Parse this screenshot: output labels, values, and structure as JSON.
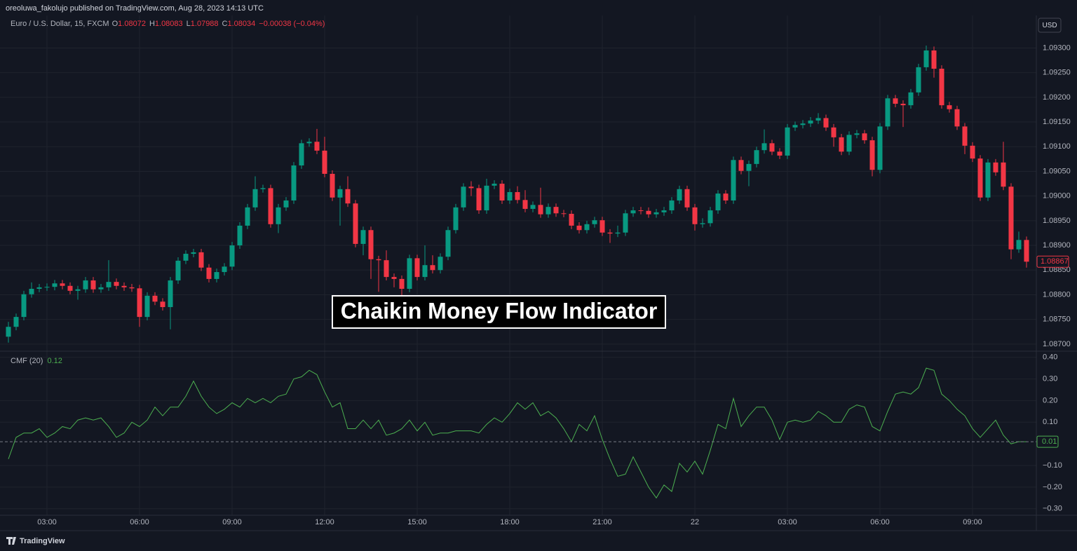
{
  "header": {
    "published": "oreoluwa_fakolujo published on TradingView.com, Aug 28, 2023 14:13 UTC",
    "currency": "USD",
    "annotation": "Chaikin Money Flow Indicator",
    "brand": "TradingView"
  },
  "chart_data": [
    {
      "type": "candlestick",
      "title": "Euro / U.S. Dollar, 15, FXCM",
      "quote": [
        [
          "O",
          "1.08072"
        ],
        [
          "H",
          "1.08083"
        ],
        [
          "L",
          "1.07988"
        ],
        [
          "C",
          "1.08034"
        ]
      ],
      "change": "−0.00038 (−0.04%)",
      "last_price_label": "1.08867",
      "up_color": "#089981",
      "down_color": "#f23645",
      "grid": true,
      "ylim": [
        1.08687,
        1.09366
      ],
      "yticks": [
        {
          "value": 1.093,
          "label": "1.09300"
        },
        {
          "value": 1.0925,
          "label": "1.09250"
        },
        {
          "value": 1.092,
          "label": "1.09200"
        },
        {
          "value": 1.0915,
          "label": "1.09150"
        },
        {
          "value": 1.091,
          "label": "1.09100"
        },
        {
          "value": 1.0905,
          "label": "1.09050"
        },
        {
          "value": 1.09,
          "label": "1.09000"
        },
        {
          "value": 1.0895,
          "label": "1.08950"
        },
        {
          "value": 1.089,
          "label": "1.08900"
        },
        {
          "value": 1.0885,
          "label": "1.08850"
        },
        {
          "value": 1.088,
          "label": "1.08800"
        },
        {
          "value": 1.0875,
          "label": "1.08750"
        },
        {
          "value": 1.087,
          "label": "1.08700"
        }
      ],
      "categories": [
        null,
        null,
        null,
        null,
        null,
        "03:00",
        null,
        null,
        null,
        null,
        null,
        null,
        null,
        null,
        null,
        null,
        null,
        "06:00",
        null,
        null,
        null,
        null,
        null,
        null,
        null,
        null,
        null,
        null,
        null,
        "09:00",
        null,
        null,
        null,
        null,
        null,
        null,
        null,
        null,
        null,
        null,
        null,
        "12:00",
        null,
        null,
        null,
        null,
        null,
        null,
        null,
        null,
        null,
        null,
        null,
        "15:00",
        null,
        null,
        null,
        null,
        null,
        null,
        null,
        null,
        null,
        null,
        null,
        "18:00",
        null,
        null,
        null,
        null,
        null,
        null,
        null,
        null,
        null,
        null,
        null,
        "21:00",
        null,
        null,
        null,
        null,
        null,
        null,
        null,
        null,
        null,
        null,
        null,
        "22",
        null,
        null,
        null,
        null,
        null,
        null,
        null,
        null,
        null,
        null,
        null,
        "03:00",
        null,
        null,
        null,
        null,
        null,
        null,
        null,
        null,
        null,
        null,
        null,
        "06:00",
        null,
        null,
        null,
        null,
        null,
        null,
        null,
        null,
        null,
        null,
        null,
        "09:00",
        null,
        null,
        null,
        null,
        null,
        null,
        null
      ],
      "open": [
        1.08715,
        1.08735,
        1.08755,
        1.08801,
        1.08812,
        1.08815,
        1.08816,
        1.08823,
        1.08818,
        1.08808,
        1.08811,
        1.08829,
        1.08811,
        1.08815,
        1.08826,
        1.08818,
        1.08815,
        1.08813,
        1.08755,
        1.08798,
        1.08786,
        1.08775,
        1.08829,
        1.08869,
        1.08883,
        1.08886,
        1.08855,
        1.08832,
        1.08846,
        1.08857,
        1.089,
        1.0894,
        1.08977,
        1.09014,
        1.09016,
        1.08943,
        1.08977,
        1.08991,
        1.09062,
        1.09107,
        1.0911,
        1.09092,
        1.09045,
        1.08997,
        1.09014,
        1.08985,
        1.08903,
        1.08931,
        1.08872,
        1.0887,
        1.08836,
        1.08832,
        1.08812,
        1.08874,
        1.08836,
        1.0886,
        1.0885,
        1.08877,
        1.08931,
        1.08977,
        1.09019,
        1.09016,
        1.08971,
        1.09021,
        1.09025,
        1.08991,
        1.09008,
        1.08992,
        1.08974,
        1.08982,
        1.08963,
        1.08978,
        1.08965,
        1.08964,
        1.0894,
        1.08931,
        1.08943,
        1.08951,
        1.08926,
        1.08924,
        1.08926,
        1.08965,
        1.08971,
        1.0897,
        1.08963,
        1.08967,
        1.08971,
        1.08991,
        1.09014,
        1.08977,
        1.08943,
        1.08945,
        1.08971,
        1.09005,
        1.08991,
        1.09073,
        1.09051,
        1.09065,
        1.09093,
        1.09107,
        1.0909,
        1.09082,
        1.09139,
        1.09144,
        1.09147,
        1.09153,
        1.09158,
        1.09139,
        1.09119,
        1.0909,
        1.09124,
        1.09127,
        1.09113,
        1.09053,
        1.09141,
        1.09198,
        1.09187,
        1.09184,
        1.0921,
        1.09261,
        1.09295,
        1.09258,
        1.09184,
        1.09176,
        1.09141,
        1.09102,
        1.09076,
        1.08997,
        1.09068,
        1.09068,
        1.09019,
        1.08892,
        1.08911
      ],
      "high": [
        1.08745,
        1.08762,
        1.08808,
        1.08825,
        1.08822,
        1.08823,
        1.0883,
        1.0883,
        1.08825,
        1.08818,
        1.08836,
        1.08836,
        1.08822,
        1.0887,
        1.08833,
        1.08825,
        1.08822,
        1.0882,
        1.08805,
        1.08805,
        1.08793,
        1.08836,
        1.08876,
        1.0889,
        1.08893,
        1.08893,
        1.08862,
        1.08853,
        1.08864,
        1.08907,
        1.08947,
        1.08984,
        1.0904,
        1.09023,
        1.09023,
        1.08984,
        1.08998,
        1.09069,
        1.09114,
        1.09117,
        1.09136,
        1.0912,
        1.09052,
        1.09021,
        1.0904,
        1.08992,
        1.08938,
        1.08938,
        1.08879,
        1.0889,
        1.08843,
        1.08839,
        1.08881,
        1.08881,
        1.089,
        1.0888,
        1.08884,
        1.08938,
        1.08984,
        1.09026,
        1.0903,
        1.09023,
        1.09035,
        1.09032,
        1.09032,
        1.09015,
        1.0902,
        1.09012,
        1.08989,
        1.09017,
        1.08985,
        1.08985,
        1.08972,
        1.08971,
        1.08947,
        1.0895,
        1.08958,
        1.08958,
        1.08933,
        1.0894,
        1.08972,
        1.08978,
        1.08978,
        1.08977,
        1.08974,
        1.08978,
        1.08998,
        1.09021,
        1.09021,
        1.08984,
        1.08955,
        1.08978,
        1.09012,
        1.09012,
        1.0908,
        1.0908,
        1.09072,
        1.091,
        1.09135,
        1.09114,
        1.09097,
        1.09146,
        1.09151,
        1.09154,
        1.0916,
        1.09168,
        1.09165,
        1.09146,
        1.09126,
        1.09131,
        1.09134,
        1.09134,
        1.0912,
        1.09148,
        1.09205,
        1.09205,
        1.09194,
        1.09217,
        1.09268,
        1.09305,
        1.09303,
        1.09265,
        1.09191,
        1.09183,
        1.09148,
        1.09109,
        1.09083,
        1.09075,
        1.09075,
        1.0911,
        1.09026,
        1.08928,
        1.08918
      ],
      "low": [
        1.08703,
        1.08728,
        1.08748,
        1.08794,
        1.08805,
        1.08808,
        1.08809,
        1.08811,
        1.08801,
        1.0879,
        1.08804,
        1.08804,
        1.08804,
        1.08808,
        1.08811,
        1.08808,
        1.08806,
        1.08735,
        1.08748,
        1.08779,
        1.08768,
        1.0873,
        1.08822,
        1.08862,
        1.08876,
        1.08848,
        1.08825,
        1.08825,
        1.08839,
        1.0885,
        1.08893,
        1.08933,
        1.0897,
        1.09007,
        1.08936,
        1.08925,
        1.0897,
        1.08984,
        1.09055,
        1.091,
        1.09085,
        1.09038,
        1.0899,
        1.0894,
        1.08978,
        1.08896,
        1.0888,
        1.08832,
        1.08806,
        1.08829,
        1.08815,
        1.08797,
        1.08805,
        1.08829,
        1.08829,
        1.08843,
        1.08843,
        1.0887,
        1.08924,
        1.0897,
        1.09,
        1.08964,
        1.08964,
        1.09014,
        1.08984,
        1.08984,
        1.08985,
        1.08967,
        1.08967,
        1.08956,
        1.08956,
        1.08958,
        1.08957,
        1.08933,
        1.08924,
        1.08924,
        1.08936,
        1.08919,
        1.08905,
        1.08917,
        1.08919,
        1.08958,
        1.08963,
        1.08956,
        1.08956,
        1.0896,
        1.08964,
        1.08984,
        1.0897,
        1.0893,
        1.08936,
        1.08938,
        1.08964,
        1.08984,
        1.08984,
        1.09044,
        1.0902,
        1.09058,
        1.09086,
        1.09083,
        1.09075,
        1.09075,
        1.09132,
        1.09137,
        1.0914,
        1.09146,
        1.09132,
        1.091,
        1.09083,
        1.09083,
        1.09117,
        1.09106,
        1.0904,
        1.09046,
        1.09134,
        1.0918,
        1.0914,
        1.09177,
        1.09203,
        1.09254,
        1.0924,
        1.09177,
        1.09169,
        1.09134,
        1.09085,
        1.09069,
        1.0899,
        1.0899,
        1.09041,
        1.09012,
        1.08872,
        1.08885,
        1.08855
      ],
      "close": [
        1.08735,
        1.08755,
        1.08801,
        1.08812,
        1.08815,
        1.08816,
        1.08823,
        1.08818,
        1.08808,
        1.08811,
        1.08829,
        1.08811,
        1.08815,
        1.08826,
        1.08818,
        1.08815,
        1.08813,
        1.08755,
        1.08798,
        1.08786,
        1.08775,
        1.08829,
        1.08869,
        1.08883,
        1.08886,
        1.08855,
        1.08832,
        1.08846,
        1.08857,
        1.089,
        1.0894,
        1.08977,
        1.09014,
        1.09016,
        1.08943,
        1.08977,
        1.08991,
        1.09062,
        1.09107,
        1.0911,
        1.09092,
        1.09045,
        1.08997,
        1.09014,
        1.08985,
        1.08903,
        1.08931,
        1.08872,
        1.0887,
        1.08836,
        1.08832,
        1.08812,
        1.08874,
        1.08836,
        1.0886,
        1.0885,
        1.08877,
        1.08931,
        1.08977,
        1.09019,
        1.09016,
        1.08971,
        1.09021,
        1.09025,
        1.08991,
        1.09008,
        1.08992,
        1.08974,
        1.08982,
        1.08963,
        1.08978,
        1.08965,
        1.08964,
        1.0894,
        1.08931,
        1.08943,
        1.08951,
        1.08926,
        1.08924,
        1.08926,
        1.08965,
        1.08971,
        1.0897,
        1.08963,
        1.08967,
        1.08971,
        1.08991,
        1.09014,
        1.08977,
        1.08943,
        1.08945,
        1.08971,
        1.09005,
        1.08991,
        1.09073,
        1.09051,
        1.09065,
        1.09093,
        1.09107,
        1.0909,
        1.09082,
        1.09139,
        1.09144,
        1.09147,
        1.09153,
        1.09158,
        1.09139,
        1.09119,
        1.0909,
        1.09124,
        1.09127,
        1.09113,
        1.09053,
        1.09141,
        1.09198,
        1.09187,
        1.09184,
        1.0921,
        1.09261,
        1.09295,
        1.09258,
        1.09184,
        1.09176,
        1.09141,
        1.09102,
        1.09076,
        1.08997,
        1.09068,
        1.09048,
        1.09019,
        1.08892,
        1.08911,
        1.08867
      ]
    },
    {
      "type": "line",
      "series": [
        {
          "name": "CMF (20)",
          "color": "#4caf50",
          "legend_value": "0.12",
          "last_value_label": "0.01",
          "values": [
            -0.07,
            0.03,
            0.05,
            0.05,
            0.07,
            0.03,
            0.05,
            0.08,
            0.07,
            0.11,
            0.12,
            0.11,
            0.12,
            0.08,
            0.03,
            0.05,
            0.1,
            0.08,
            0.11,
            0.17,
            0.13,
            0.17,
            0.17,
            0.22,
            0.29,
            0.22,
            0.17,
            0.14,
            0.16,
            0.19,
            0.17,
            0.21,
            0.19,
            0.21,
            0.19,
            0.22,
            0.23,
            0.3,
            0.31,
            0.34,
            0.32,
            0.24,
            0.17,
            0.19,
            0.07,
            0.07,
            0.11,
            0.07,
            0.11,
            0.04,
            0.05,
            0.07,
            0.11,
            0.06,
            0.1,
            0.04,
            0.05,
            0.05,
            0.06,
            0.06,
            0.06,
            0.05,
            0.09,
            0.12,
            0.1,
            0.14,
            0.19,
            0.16,
            0.19,
            0.13,
            0.15,
            0.12,
            0.07,
            0.01,
            0.09,
            0.06,
            0.13,
            0.02,
            -0.07,
            -0.15,
            -0.14,
            -0.06,
            -0.13,
            -0.2,
            -0.25,
            -0.19,
            -0.22,
            -0.09,
            -0.13,
            -0.08,
            -0.14,
            -0.03,
            0.09,
            0.07,
            0.21,
            0.08,
            0.13,
            0.17,
            0.17,
            0.11,
            0.02,
            0.1,
            0.11,
            0.1,
            0.11,
            0.15,
            0.13,
            0.1,
            0.1,
            0.16,
            0.18,
            0.17,
            0.08,
            0.06,
            0.15,
            0.23,
            0.24,
            0.23,
            0.26,
            0.35,
            0.34,
            0.23,
            0.2,
            0.16,
            0.13,
            0.07,
            0.03,
            0.07,
            0.11,
            0.04,
            0.0,
            0.01,
            0.01
          ]
        }
      ],
      "ylim": [
        -0.33,
        0.425
      ],
      "grid": true,
      "yticks": [
        {
          "value": 0.4,
          "label": "0.40"
        },
        {
          "value": 0.3,
          "label": "0.30"
        },
        {
          "value": 0.2,
          "label": "0.20"
        },
        {
          "value": 0.1,
          "label": "0.10"
        },
        {
          "value": -0.1,
          "label": "−0.10"
        },
        {
          "value": -0.2,
          "label": "−0.20"
        },
        {
          "value": -0.3,
          "label": "−0.30"
        }
      ]
    }
  ]
}
